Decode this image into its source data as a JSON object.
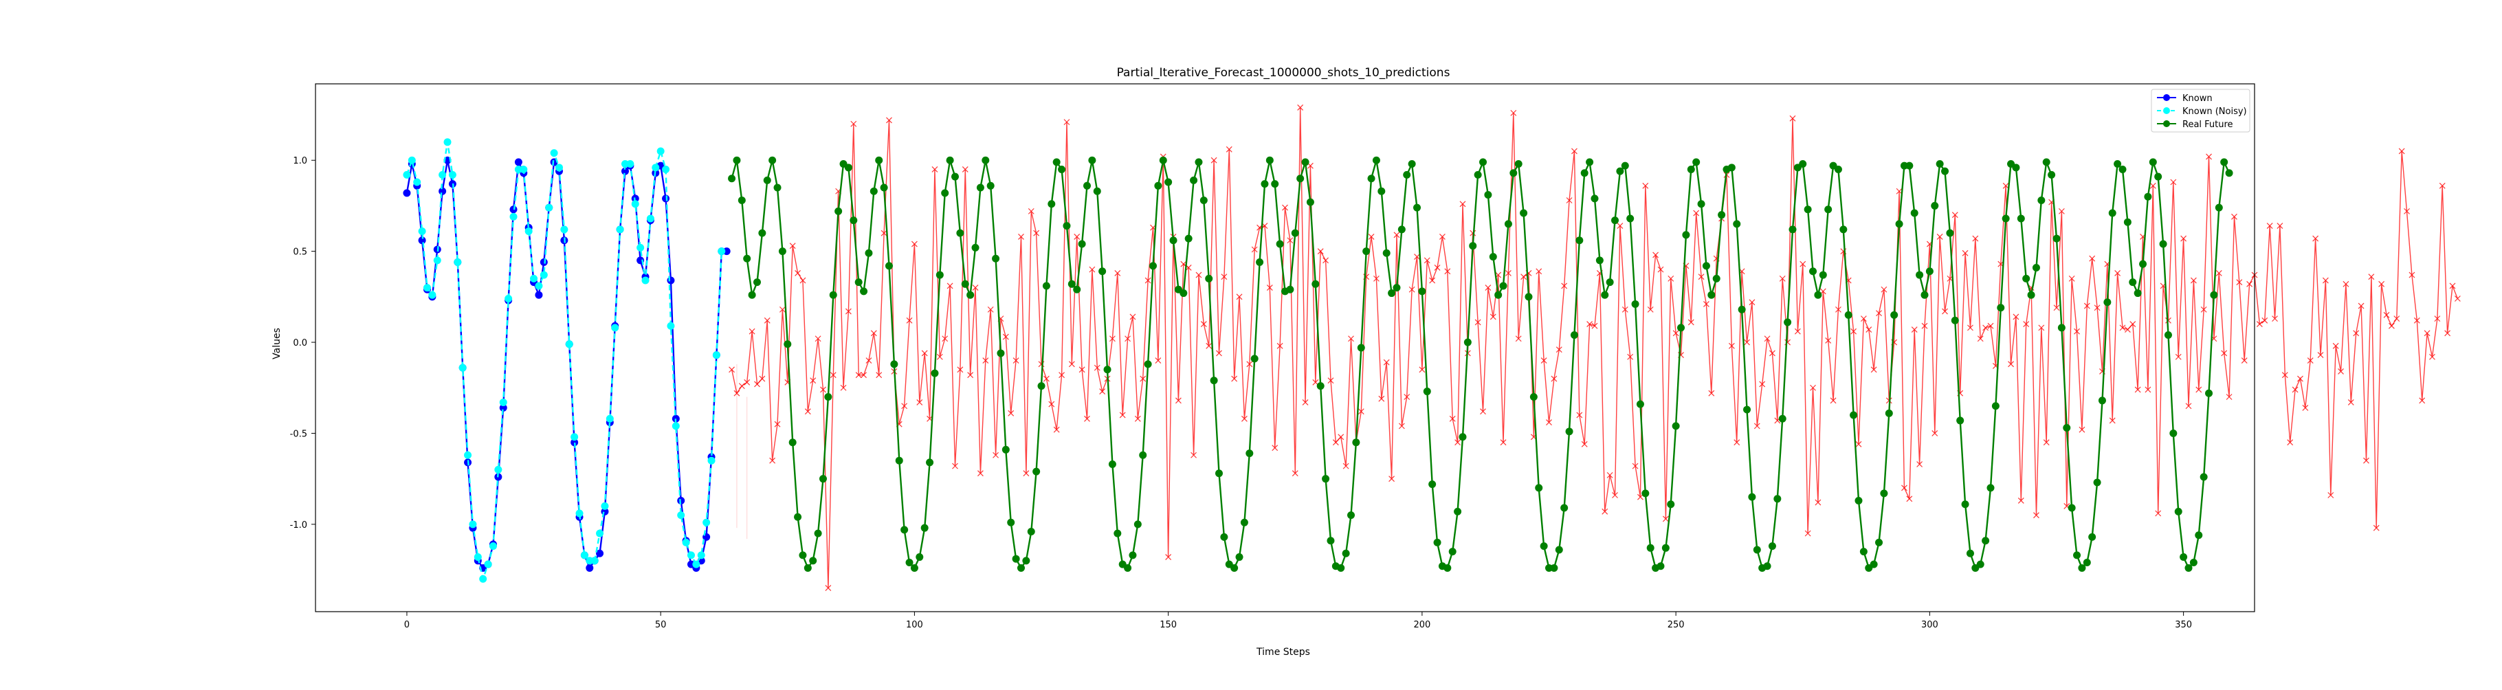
{
  "chart_data": {
    "type": "line",
    "title": "Partial_Iterative_Forecast_1000000_shots_10_predictions",
    "xlabel": "Time Steps",
    "ylabel": "Values",
    "xlim": [
      -18,
      364
    ],
    "ylim": [
      -1.48,
      1.42
    ],
    "xticks": [
      0,
      50,
      100,
      150,
      200,
      250,
      300,
      350
    ],
    "yticks": [
      -1.0,
      -0.5,
      0.0,
      0.5,
      1.0
    ],
    "grid": false,
    "legend_position": "top-right",
    "colors": {
      "known": "#0000ff",
      "known_noisy": "#00ffff",
      "real_future": "#008000",
      "prediction": "#ff0000"
    },
    "signal": {
      "description_formula": "0.5 * (sin(2*pi*t/7) + sin(2*pi*t/21)) - 0.12",
      "known_range": [
        0,
        64
      ],
      "future_range": [
        64,
        364
      ]
    },
    "series": [
      {
        "name": "Known",
        "color": "#0000ff",
        "style": "solid line, circle markers",
        "x": [
          0,
          1,
          2,
          3,
          4,
          5,
          6,
          7,
          8,
          9,
          10,
          11,
          12,
          13,
          14,
          15,
          16,
          17,
          18,
          19,
          20,
          21,
          22,
          23,
          24,
          25,
          26,
          27,
          28,
          29,
          30,
          31,
          32,
          33,
          34,
          35,
          36,
          37,
          38,
          39,
          40,
          41,
          42,
          43,
          44,
          45,
          46,
          47,
          48,
          49,
          50,
          51,
          52,
          53,
          54,
          55,
          56,
          57,
          58,
          59,
          60,
          61,
          62,
          63
        ],
        "values": [
          0.82,
          0.98,
          0.86,
          0.56,
          0.29,
          0.25,
          0.51,
          0.83,
          1.0,
          0.87,
          0.44,
          -0.14,
          -0.66,
          -1.02,
          -1.2,
          -1.24,
          -1.22,
          -1.11,
          -0.74,
          -0.36,
          0.23,
          0.73,
          0.99,
          0.93,
          0.63,
          0.33,
          0.26,
          0.44,
          0.74,
          0.99,
          0.94,
          0.56,
          -0.01,
          -0.55,
          -0.96,
          -1.17,
          -1.24,
          -1.2,
          -1.16,
          -0.93,
          -0.44,
          0.09,
          0.62,
          0.94,
          0.97,
          0.79,
          0.45,
          0.36,
          0.67,
          0.93,
          0.97,
          0.79,
          0.34,
          -0.42,
          -0.87,
          -1.09,
          -1.22,
          -1.24,
          -1.2,
          -1.07,
          -0.63,
          -0.07,
          0.5,
          0.5
        ]
      },
      {
        "name": "Known (Noisy)",
        "color": "#00ffff",
        "style": "dashed line, circle markers",
        "x": [
          0,
          1,
          2,
          3,
          4,
          5,
          6,
          7,
          8,
          9,
          10,
          11,
          12,
          13,
          14,
          15,
          16,
          17,
          18,
          19,
          20,
          21,
          22,
          23,
          24,
          25,
          26,
          27,
          28,
          29,
          30,
          31,
          32,
          33,
          34,
          35,
          36,
          37,
          38,
          39,
          40,
          41,
          42,
          43,
          44,
          45,
          46,
          47,
          48,
          49,
          50,
          51,
          52,
          53,
          54,
          55,
          56,
          57,
          58,
          59,
          60,
          61,
          62
        ],
        "values": [
          0.92,
          1.0,
          0.88,
          0.61,
          0.3,
          0.26,
          0.45,
          0.92,
          1.1,
          0.92,
          0.44,
          -0.14,
          -0.62,
          -1.0,
          -1.18,
          -1.3,
          -1.22,
          -1.12,
          -0.7,
          -0.33,
          0.24,
          0.69,
          0.95,
          0.95,
          0.61,
          0.35,
          0.31,
          0.37,
          0.74,
          1.04,
          0.96,
          0.62,
          -0.01,
          -0.52,
          -0.94,
          -1.17,
          -1.2,
          -1.2,
          -1.05,
          -0.9,
          -0.42,
          0.08,
          0.62,
          0.98,
          0.98,
          0.76,
          0.52,
          0.34,
          0.68,
          0.96,
          1.05,
          0.95,
          0.09,
          -0.46,
          -0.95,
          -1.1,
          -1.17,
          -1.22,
          -1.17,
          -0.99,
          -0.65,
          -0.07,
          0.5
        ]
      },
      {
        "name": "Real Future",
        "color": "#008000",
        "style": "solid line, circle markers",
        "x_start": 64,
        "x_step": 1,
        "values": [
          0.9,
          1.0,
          0.78,
          0.46,
          0.26,
          0.33,
          0.6,
          0.89,
          1.0,
          0.85,
          0.5,
          -0.01,
          -0.55,
          -0.96,
          -1.17,
          -1.24,
          -1.2,
          -1.05,
          -0.75,
          -0.3,
          0.26,
          0.72,
          0.98,
          0.96,
          0.67,
          0.33,
          0.28,
          0.49,
          0.83,
          1.0,
          0.85,
          0.42,
          -0.12,
          -0.65,
          -1.03,
          -1.21,
          -1.24,
          -1.18,
          -1.02,
          -0.66,
          -0.17,
          0.37,
          0.82,
          1.0,
          0.91,
          0.6,
          0.32,
          0.26,
          0.52,
          0.85,
          1.0,
          0.86,
          0.46,
          -0.06,
          -0.59,
          -0.99,
          -1.19,
          -1.24,
          -1.2,
          -1.04,
          -0.71,
          -0.24,
          0.31,
          0.76,
          0.99,
          0.95,
          0.64,
          0.32,
          0.29,
          0.54,
          0.86,
          1.0,
          0.83,
          0.39,
          -0.15,
          -0.67,
          -1.05,
          -1.22,
          -1.24,
          -1.17,
          -1.0,
          -0.62,
          -0.12,
          0.42,
          0.86,
          1.0,
          0.88,
          0.56,
          0.29,
          0.27,
          0.57,
          0.89,
          0.99,
          0.78,
          0.35,
          -0.21,
          -0.72,
          -1.07,
          -1.22,
          -1.24,
          -1.18,
          -0.99,
          -0.61,
          -0.09,
          0.44,
          0.87,
          1.0,
          0.87,
          0.54,
          0.28,
          0.29,
          0.6,
          0.9,
          0.99,
          0.77,
          0.32,
          -0.24,
          -0.75,
          -1.09,
          -1.23,
          -1.24,
          -1.16,
          -0.95,
          -0.55,
          -0.03,
          0.5,
          0.9,
          1.0,
          0.83,
          0.49,
          0.27,
          0.3,
          0.62,
          0.92,
          0.98,
          0.74,
          0.28,
          -0.27,
          -0.78,
          -1.1,
          -1.23,
          -1.24,
          -1.15,
          -0.93,
          -0.52,
          0.0,
          0.53,
          0.92,
          0.99,
          0.81,
          0.47,
          0.26,
          0.31,
          0.65,
          0.93,
          0.98,
          0.71,
          0.25,
          -0.3,
          -0.8,
          -1.12,
          -1.24,
          -1.24,
          -1.14,
          -0.91,
          -0.49,
          0.04,
          0.56,
          0.93,
          0.99,
          0.79,
          0.45,
          0.26,
          0.33,
          0.67,
          0.94,
          0.97,
          0.68,
          0.21,
          -0.34,
          -0.83,
          -1.13,
          -1.24,
          -1.23,
          -1.13,
          -0.89,
          -0.46,
          0.08,
          0.59,
          0.95,
          0.99,
          0.76,
          0.42,
          0.26,
          0.35,
          0.7,
          0.95,
          0.96,
          0.65,
          0.18,
          -0.37,
          -0.85,
          -1.14,
          -1.24,
          -1.23,
          -1.12,
          -0.86,
          -0.42,
          0.11,
          0.62,
          0.96,
          0.98,
          0.73,
          0.39,
          0.26,
          0.37,
          0.73,
          0.97,
          0.95,
          0.62,
          0.15,
          -0.4,
          -0.87,
          -1.15,
          -1.24,
          -1.22,
          -1.1,
          -0.83,
          -0.39,
          0.15,
          0.65,
          0.97,
          0.97,
          0.71,
          0.37,
          0.26,
          0.39,
          0.75,
          0.98,
          0.94,
          0.6,
          0.12,
          -0.43,
          -0.89,
          -1.16,
          -1.24,
          -1.22,
          -1.09,
          -0.8,
          -0.35,
          0.19,
          0.68,
          0.98,
          0.96,
          0.68,
          0.35,
          0.26,
          0.41,
          0.78,
          0.99,
          0.92,
          0.57,
          0.08,
          -0.47,
          -0.91,
          -1.17,
          -1.24,
          -1.21,
          -1.07,
          -0.77,
          -0.32,
          0.22,
          0.71,
          0.98,
          0.95,
          0.66,
          0.33,
          0.27,
          0.43,
          0.8,
          0.99,
          0.91,
          0.54,
          0.04,
          -0.5,
          -0.93,
          -1.18,
          -1.24,
          -1.21,
          -1.06,
          -0.74,
          -0.28,
          0.26,
          0.74,
          0.99,
          0.93
        ]
      },
      {
        "name": "",
        "color": "#ff0000",
        "style": "solid line, x markers (prediction)",
        "x_start": 64,
        "x_step": 1,
        "values": [
          -0.15,
          -0.28,
          -0.24,
          -0.22,
          0.06,
          -0.23,
          -0.2,
          0.12,
          -0.65,
          -0.45,
          0.18,
          -0.22,
          0.53,
          0.38,
          0.34,
          -0.38,
          -0.21,
          0.02,
          -0.26,
          -1.35,
          -0.18,
          0.83,
          -0.25,
          0.17,
          1.2,
          -0.18,
          -0.18,
          -0.1,
          0.05,
          -0.18,
          0.6,
          1.22,
          -0.16,
          -0.45,
          -0.35,
          0.12,
          0.54,
          -0.33,
          -0.06,
          -0.42,
          0.95,
          -0.08,
          0.02,
          0.31,
          -0.68,
          -0.15,
          0.95,
          -0.18,
          0.3,
          -0.72,
          -0.1,
          0.18,
          -0.62,
          0.13,
          0.03,
          -0.39,
          -0.1,
          0.58,
          -0.72,
          0.72,
          0.6,
          -0.12,
          -0.2,
          -0.34,
          -0.48,
          -0.18,
          1.21,
          -0.12,
          0.58,
          -0.15,
          -0.42,
          0.4,
          -0.14,
          -0.27,
          -0.2,
          0.02,
          0.38,
          -0.4,
          0.02,
          0.14,
          -0.42,
          -0.2,
          0.34,
          0.63,
          -0.1,
          1.02,
          -1.18,
          0.58,
          -0.32,
          0.43,
          0.41,
          -0.62,
          0.37,
          0.1,
          -0.02,
          1.0,
          -0.06,
          0.36,
          1.06,
          -0.2,
          0.25,
          -0.42,
          -0.12,
          0.51,
          0.63,
          0.64,
          0.3,
          -0.58,
          -0.02,
          0.74,
          0.56,
          -0.72,
          1.29,
          -0.33,
          0.97,
          -0.22,
          0.5,
          0.45,
          -0.21,
          -0.55,
          -0.52,
          -0.68,
          0.02,
          -0.55,
          -0.38,
          0.36,
          0.58,
          0.35,
          -0.31,
          -0.11,
          -0.75,
          0.59,
          -0.46,
          -0.3,
          0.29,
          0.47,
          -0.15,
          0.45,
          0.34,
          0.41,
          0.58,
          0.39,
          -0.42,
          -0.55,
          0.76,
          -0.06,
          0.6,
          0.11,
          -0.38,
          0.3,
          0.14,
          0.37,
          -0.55,
          0.38,
          1.26,
          0.02,
          0.36,
          0.38,
          -0.52,
          0.39,
          -0.1,
          -0.44,
          -0.2,
          -0.04,
          0.31,
          0.78,
          1.05,
          -0.4,
          -0.56,
          0.1,
          0.09,
          0.38,
          -0.93,
          -0.73,
          -0.84,
          0.64,
          0.18,
          -0.08,
          -0.68,
          -0.85,
          0.86,
          0.18,
          0.48,
          0.4,
          -0.97,
          0.35,
          0.05,
          -0.07,
          0.42,
          0.11,
          0.71,
          0.36,
          0.21,
          -0.28,
          0.46,
          0.68,
          0.92,
          -0.02,
          -0.55,
          0.39,
          0.0,
          0.22,
          -0.46,
          -0.23,
          0.02,
          -0.06,
          -0.43,
          0.35,
          0.0,
          1.23,
          0.06,
          0.43,
          -1.05,
          -0.25,
          -0.88,
          0.28,
          0.01,
          -0.32,
          0.18,
          0.5,
          0.34,
          0.06,
          -0.56,
          0.13,
          0.07,
          -0.15,
          0.16,
          0.29,
          -0.32,
          0.0,
          0.83,
          -0.8,
          -0.86,
          0.07,
          -0.67,
          0.09,
          0.54,
          -0.5,
          0.58,
          0.17,
          0.35,
          0.7,
          -0.28,
          0.49,
          0.08,
          0.57,
          0.02,
          0.08,
          0.09,
          -0.13,
          0.43,
          0.86,
          -0.12,
          0.14,
          -0.87,
          0.1,
          0.3,
          -0.95,
          0.08,
          -0.55,
          0.77,
          0.19,
          0.72,
          -0.9,
          0.35,
          0.06,
          -0.48,
          0.2,
          0.46,
          0.19,
          -0.16,
          0.43,
          -0.43,
          0.38,
          0.08,
          0.07,
          0.1,
          -0.26,
          0.58,
          -0.26,
          0.86,
          -0.94,
          0.31,
          0.12,
          0.88,
          -0.08,
          0.57,
          -0.35,
          0.34,
          -0.26,
          0.18,
          1.02,
          0.02,
          0.38,
          -0.06,
          -0.3,
          0.69,
          0.33,
          -0.1,
          0.32,
          0.37,
          0.1,
          0.12,
          0.64,
          0.13,
          0.64,
          -0.18,
          -0.55,
          -0.26,
          -0.2,
          -0.36,
          -0.1,
          0.57,
          -0.07,
          0.34,
          -0.84,
          -0.02,
          -0.16,
          0.32,
          -0.33,
          0.05,
          0.2,
          -0.65,
          0.36,
          -1.02,
          0.32,
          0.15,
          0.09,
          0.13,
          1.05,
          0.72,
          0.37,
          0.12,
          -0.32,
          0.05,
          -0.08,
          0.13,
          0.86,
          0.05,
          0.31,
          0.24
        ]
      }
    ],
    "legend": {
      "entries": [
        {
          "label": "Known",
          "color": "#0000ff"
        },
        {
          "label": "Known (Noisy)",
          "color": "#00ffff"
        },
        {
          "label": "Real Future",
          "color": "#008000"
        }
      ]
    },
    "faint_lines": {
      "color": "#ff0000",
      "note": "faint red vertical streaks near start of forecast"
    }
  }
}
